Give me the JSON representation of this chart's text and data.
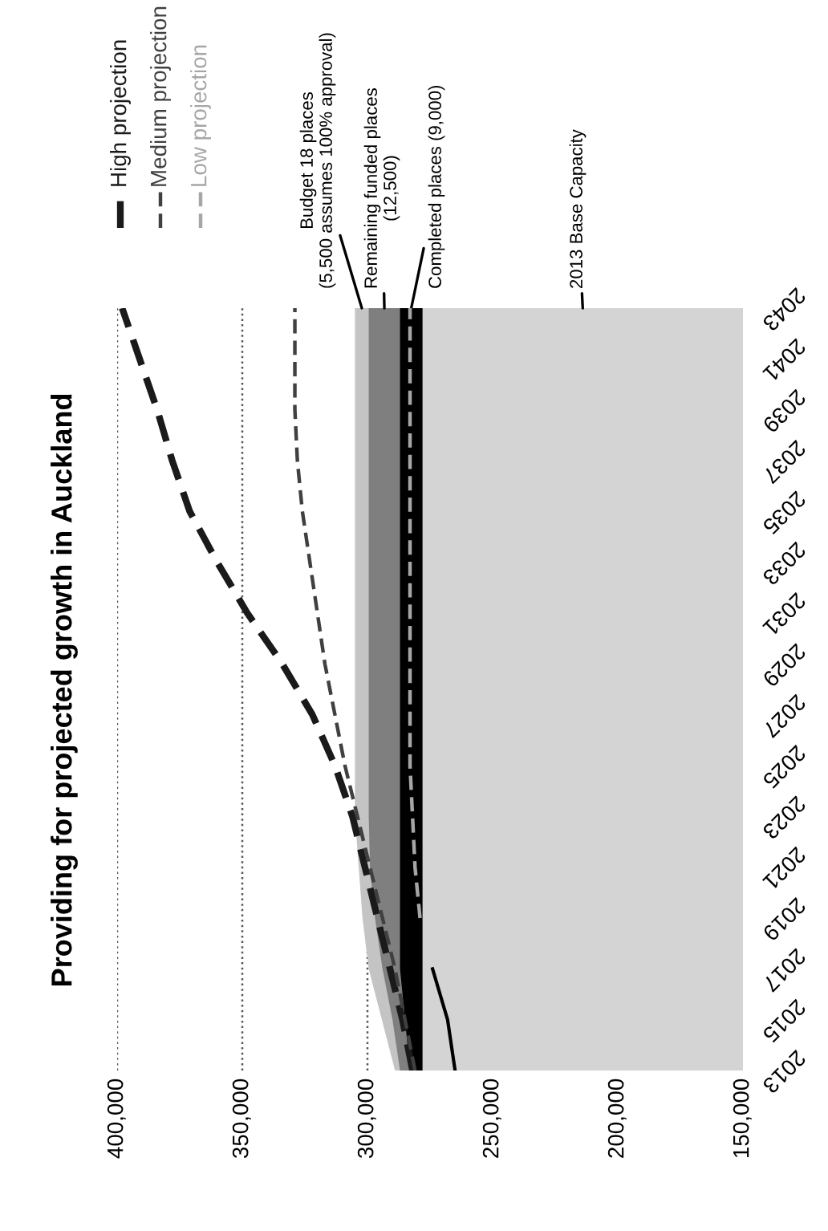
{
  "chart_data": {
    "type": "area",
    "title": "Providing for projected growth in Auckland",
    "orientation": "horizontal",
    "legend": "top left",
    "grid": "x",
    "x": [
      2013,
      2015,
      2017,
      2019,
      2021,
      2023,
      2025,
      2027,
      2029,
      2031,
      2033,
      2035,
      2037,
      2039,
      2041,
      2043
    ],
    "ylim": [
      2013,
      2043
    ],
    "yticks": [
      2013,
      2015,
      2017,
      2019,
      2021,
      2023,
      2025,
      2027,
      2029,
      2031,
      2033,
      2035,
      2037,
      2039,
      2041,
      2043
    ],
    "xlim": [
      400000,
      150000
    ],
    "xticks": [
      {
        "value": 400000,
        "label": "400,000"
      },
      {
        "value": 350000,
        "label": "350,000"
      },
      {
        "value": 300000,
        "label": "300,000"
      },
      {
        "value": 250000,
        "label": "250,000"
      },
      {
        "value": 200000,
        "label": "200,000"
      },
      {
        "value": 150000,
        "label": "150,000"
      }
    ],
    "series": [
      {
        "name": "Budget 18 places\n(5,500 assumes 100% approval)",
        "color": "#c4c4c4",
        "values": [
          289000,
          null,
          299500,
          302000,
          303500,
          305000,
          305000,
          305000,
          305000,
          305000,
          305000,
          305000,
          305000,
          305000,
          305000,
          305000
        ]
      },
      {
        "name": "Remaining funded places\n(12,500)",
        "color": "#7f7f7f",
        "values": [
          287000,
          290000,
          294000,
          297000,
          299000,
          299500,
          299500,
          299500,
          299500,
          299500,
          299500,
          299500,
          299500,
          299500,
          299500,
          299500
        ]
      },
      {
        "name": "Completed places (9,000)",
        "color": "#000000",
        "values": [
          283000,
          285000,
          287000,
          287000,
          287000,
          287000,
          287000,
          287000,
          287000,
          287000,
          287000,
          287000,
          287000,
          287000,
          287000,
          287000
        ]
      },
      {
        "name": "2013 Base Capacity",
        "color": "#d4d4d4",
        "values": [
          278000,
          278000,
          278000,
          278000,
          278000,
          278000,
          278000,
          278000,
          278000,
          278000,
          278000,
          278000,
          278000,
          278000,
          278000,
          278000
        ]
      },
      {
        "type": "line",
        "color": "#000000",
        "line_style": "solid",
        "values": [
          265000,
          268000,
          274000,
          null,
          null,
          null,
          null,
          null,
          null,
          null,
          null,
          null,
          null,
          null,
          null,
          null
        ]
      },
      {
        "name": "High projection",
        "type": "line",
        "color": "#1a1a1a",
        "line_style": "dashed",
        "values": [
          282000,
          286000,
          291000,
          296000,
          301000,
          306000,
          313000,
          322000,
          334000,
          348000,
          360000,
          371000,
          378000,
          384000,
          391000,
          398000
        ]
      },
      {
        "name": "Medium projection",
        "type": "line",
        "color": "#404040",
        "line_style": "dashed",
        "values": [
          281000,
          285000,
          289000,
          294000,
          299000,
          304000,
          309000,
          313000,
          317000,
          320000,
          323000,
          326000,
          328000,
          329000,
          329000,
          329000
        ]
      },
      {
        "name": "Low projection",
        "type": "line",
        "color": "#a6a6a6",
        "line_style": "dashed",
        "values": [
          null,
          null,
          null,
          279000,
          281000,
          282000,
          283000,
          283000,
          283000,
          283000,
          283000,
          283000,
          283000,
          283000,
          283000,
          283000
        ]
      }
    ]
  }
}
